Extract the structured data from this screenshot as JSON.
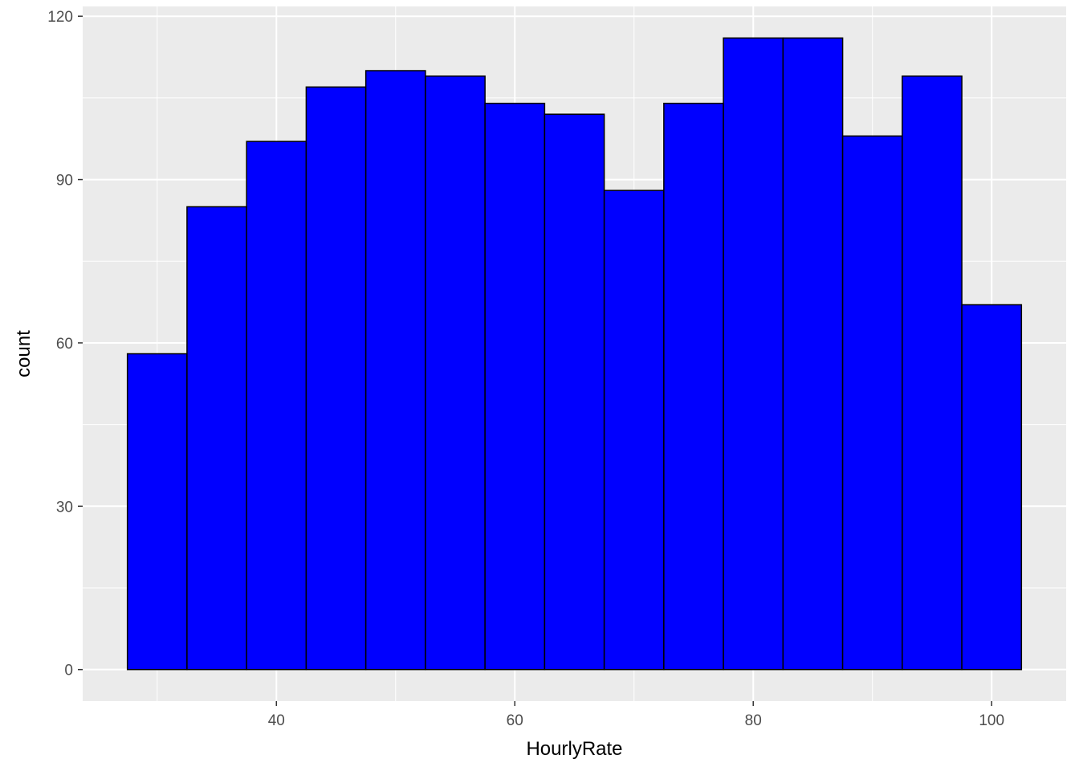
{
  "chart_data": {
    "type": "bar",
    "subtype": "histogram",
    "title": "",
    "xlabel": "HourlyRate",
    "ylabel": "count",
    "bins": [
      {
        "x_min": 27.5,
        "x_max": 32.5,
        "count": 58
      },
      {
        "x_min": 32.5,
        "x_max": 37.5,
        "count": 85
      },
      {
        "x_min": 37.5,
        "x_max": 42.5,
        "count": 97
      },
      {
        "x_min": 42.5,
        "x_max": 47.5,
        "count": 107
      },
      {
        "x_min": 47.5,
        "x_max": 52.5,
        "count": 110
      },
      {
        "x_min": 52.5,
        "x_max": 57.5,
        "count": 109
      },
      {
        "x_min": 57.5,
        "x_max": 62.5,
        "count": 104
      },
      {
        "x_min": 62.5,
        "x_max": 67.5,
        "count": 102
      },
      {
        "x_min": 67.5,
        "x_max": 72.5,
        "count": 88
      },
      {
        "x_min": 72.5,
        "x_max": 77.5,
        "count": 104
      },
      {
        "x_min": 77.5,
        "x_max": 82.5,
        "count": 116
      },
      {
        "x_min": 82.5,
        "x_max": 87.5,
        "count": 116
      },
      {
        "x_min": 87.5,
        "x_max": 92.5,
        "count": 98
      },
      {
        "x_min": 92.5,
        "x_max": 97.5,
        "count": 109
      },
      {
        "x_min": 97.5,
        "x_max": 102.5,
        "count": 67
      }
    ],
    "x_ticks": [
      40,
      60,
      80,
      100
    ],
    "x_minor_ticks": [
      30,
      50,
      70,
      90
    ],
    "y_ticks": [
      0,
      30,
      60,
      90,
      120
    ],
    "y_minor_ticks": [
      15,
      45,
      75,
      105
    ],
    "xlim": [
      23.75,
      106.25
    ],
    "ylim": [
      -5.8,
      121.8
    ],
    "grid": true,
    "legend": "none",
    "colors": {
      "bar_fill": "#0000FF",
      "bar_outline": "#000000",
      "panel_background": "#EBEBEB",
      "grid": "#FFFFFF",
      "tick_label": "#4D4D4D",
      "axis_title": "#000000"
    }
  }
}
